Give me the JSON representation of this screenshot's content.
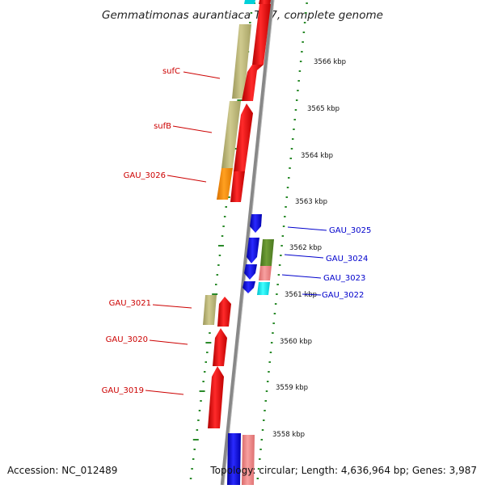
{
  "title": "Gemmatimonas aurantiaca T-27, complete genome",
  "accession": "Accession: NC_012489",
  "summary": "Topology: circular; Length: 4,636,964 bp; Genes: 3,987",
  "scale_labels": [
    "3566 kbp",
    "3565 kbp",
    "3564 kbp",
    "3563 kbp",
    "3562 kbp",
    "3561 kbp",
    "3560 kbp",
    "3559 kbp",
    "3558 kbp"
  ],
  "gene_labels_left": [
    "sufC",
    "sufB",
    "GAU_3026",
    "GAU_3021",
    "GAU_3020",
    "GAU_3019"
  ],
  "gene_labels_right": [
    "GAU_3025",
    "GAU_3024",
    "GAU_3023",
    "GAU_3022"
  ],
  "colors": {
    "forward_cds": "#ff0000",
    "reverse_cds": "#0000ee",
    "cog_tan": "#bcb77a",
    "cog_orange": "#ff8c00",
    "cog_green": "#5b8a2a",
    "cog_pink": "#f08080",
    "cog_cyan": "#00e5ee",
    "backbone": "#888888",
    "tick_green": "#2a8a2a",
    "label_red": "#cc0000",
    "label_blue": "#0000cc"
  }
}
